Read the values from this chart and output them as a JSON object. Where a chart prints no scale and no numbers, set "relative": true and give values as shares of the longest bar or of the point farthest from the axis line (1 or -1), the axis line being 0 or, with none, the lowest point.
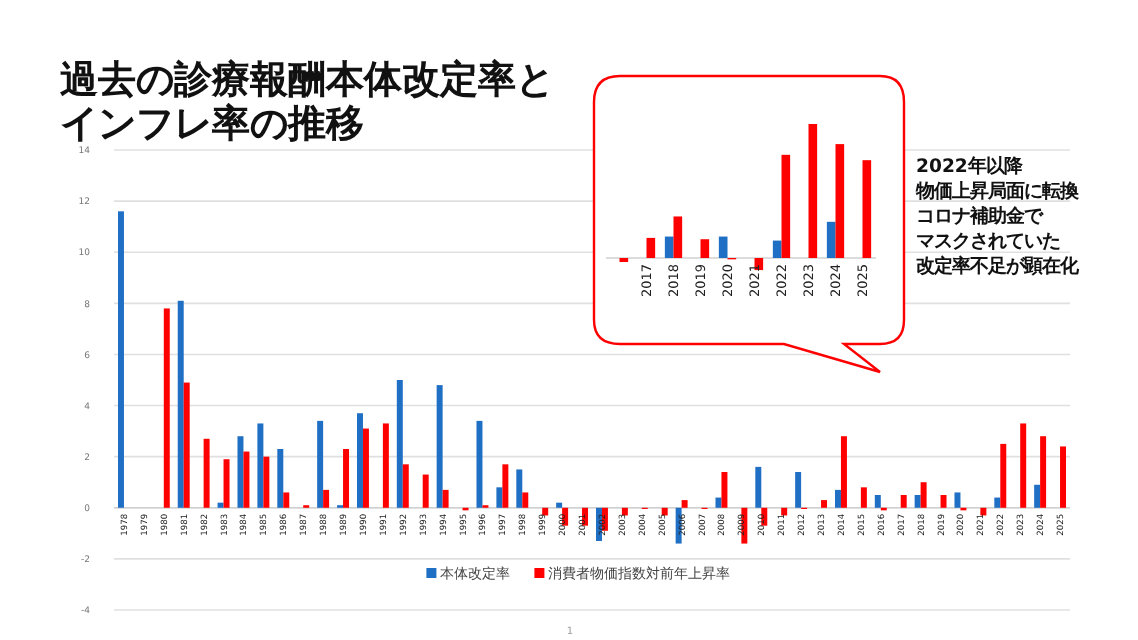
{
  "chart_data": [
    {
      "type": "bar",
      "title": "過去の診療報酬本体改定率とインフレ率の推移",
      "categories": [
        "1978",
        "1979",
        "1980",
        "1981",
        "1982",
        "1983",
        "1984",
        "1985",
        "1986",
        "1987",
        "1988",
        "1989",
        "1990",
        "1991",
        "1992",
        "1993",
        "1994",
        "1995",
        "1996",
        "1997",
        "1998",
        "1999",
        "2000",
        "2001",
        "2002",
        "2003",
        "2004",
        "2005",
        "2006",
        "2007",
        "2008",
        "2009",
        "2010",
        "2011",
        "2012",
        "2013",
        "2014",
        "2015",
        "2016",
        "2017",
        "2018",
        "2019",
        "2020",
        "2021",
        "2022",
        "2023",
        "2024",
        "2025"
      ],
      "series": [
        {
          "name": "本体改定率",
          "color": "#1f6fc5",
          "values": [
            11.6,
            null,
            null,
            8.1,
            null,
            0.2,
            2.8,
            3.3,
            2.3,
            null,
            3.4,
            0.1,
            3.7,
            null,
            5.0,
            null,
            4.8,
            null,
            3.4,
            0.8,
            1.5,
            null,
            0.2,
            null,
            -1.3,
            null,
            null,
            null,
            -1.4,
            null,
            0.4,
            null,
            1.6,
            null,
            1.4,
            null,
            0.7,
            null,
            0.5,
            null,
            0.5,
            null,
            0.6,
            null,
            0.4,
            null,
            0.9,
            null
          ]
        },
        {
          "name": "消費者物価指数対前年上昇率",
          "color": "#ff0000",
          "values": [
            null,
            null,
            7.8,
            4.9,
            2.7,
            1.9,
            2.2,
            2.0,
            0.6,
            0.1,
            0.7,
            2.3,
            3.1,
            3.3,
            1.7,
            1.3,
            0.7,
            -0.1,
            0.1,
            1.7,
            0.6,
            -0.3,
            -0.7,
            -0.7,
            -0.9,
            -0.3,
            0.0,
            -0.3,
            0.3,
            0.0,
            1.4,
            -1.4,
            -0.7,
            -0.3,
            0.0,
            0.3,
            2.8,
            0.8,
            -0.1,
            0.5,
            1.0,
            0.5,
            -0.1,
            -0.3,
            2.5,
            3.3,
            2.8,
            2.4
          ]
        }
      ],
      "ylim": [
        -4,
        14
      ],
      "yticks": [
        -4,
        -2,
        0,
        2,
        4,
        6,
        8,
        10,
        12,
        14
      ],
      "grid": "y",
      "legend": "bottom",
      "annotations": [
        "1"
      ]
    },
    {
      "type": "bar",
      "relative": true,
      "categories": [
        null,
        "2017",
        "2018",
        "2019",
        "2020",
        "2021",
        "2022",
        "2023",
        "2024",
        "2025"
      ],
      "series": [
        {
          "color": "#1f6fc5",
          "values": [
            null,
            null,
            0.16,
            null,
            0.16,
            null,
            0.13,
            null,
            0.27,
            null
          ]
        },
        {
          "color": "#ff0000",
          "values": [
            -0.03,
            0.15,
            0.31,
            0.14,
            -0.01,
            -0.09,
            0.77,
            1,
            0.85,
            0.73
          ]
        }
      ],
      "annotations": [
        "2022年以降",
        "物価上昇局面に転換",
        "コロナ補助金で",
        "マスクされていた",
        "改定率不足が顕在化"
      ]
    }
  ]
}
